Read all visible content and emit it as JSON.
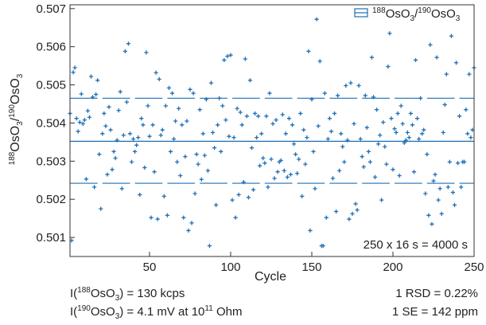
{
  "chart_data": {
    "type": "scatter",
    "xlabel": "Cycle",
    "ylabel_parts": {
      "sup1": "188",
      "base1": "OsO",
      "sub1": "3",
      "sep": "/",
      "sup2": "190",
      "base2": "OsO",
      "sub2": "3"
    },
    "legend_label_parts": {
      "sup1": "188",
      "base1": "OsO",
      "sub1": "3",
      "sep": "/",
      "sup2": "190",
      "base2": "OsO",
      "sub2": "3"
    },
    "legend_position": "top-right",
    "xlim": [
      1,
      250
    ],
    "ylim": [
      0.5005,
      0.5071
    ],
    "xticks": [
      50,
      100,
      150,
      200,
      250
    ],
    "yticks": [
      0.501,
      0.502,
      0.503,
      0.504,
      0.505,
      0.506,
      0.507
    ],
    "ytick_labels": [
      "0.501",
      "0.502",
      "0.503",
      "0.504",
      "0.505",
      "0.506",
      "0.507"
    ],
    "xtick_labels": [
      "50",
      "100",
      "150",
      "200",
      "250"
    ],
    "annotation": "250 x 16 s = 4000 s",
    "mean": 0.50352,
    "block_size": 20,
    "block_stats": [
      {
        "mean": 0.50352,
        "upper": 0.50465,
        "lower": 0.50242
      },
      {
        "mean": 0.50352,
        "upper": 0.50465,
        "lower": 0.50242
      },
      {
        "mean": 0.50352,
        "upper": 0.50465,
        "lower": 0.50242
      },
      {
        "mean": 0.50352,
        "upper": 0.50465,
        "lower": 0.50242
      },
      {
        "mean": 0.50352,
        "upper": 0.50465,
        "lower": 0.50242
      },
      {
        "mean": 0.50352,
        "upper": 0.50465,
        "lower": 0.50242
      },
      {
        "mean": 0.50352,
        "upper": 0.50465,
        "lower": 0.50242
      },
      {
        "mean": 0.50352,
        "upper": 0.50465,
        "lower": 0.50242
      },
      {
        "mean": 0.50352,
        "upper": 0.50465,
        "lower": 0.50242
      },
      {
        "mean": 0.50352,
        "upper": 0.50465,
        "lower": 0.50242
      },
      {
        "mean": 0.50352,
        "upper": 0.50465,
        "lower": 0.50242
      },
      {
        "mean": 0.50352,
        "upper": 0.50465,
        "lower": 0.50242
      },
      {
        "mean": 0.50352,
        "upper": 0.50465,
        "lower": 0.50242
      }
    ],
    "points": [
      [
        1,
        0.50425
      ],
      [
        2,
        0.50092
      ],
      [
        3,
        0.50533
      ],
      [
        4,
        0.50545
      ],
      [
        5,
        0.50412
      ],
      [
        6,
        0.50378
      ],
      [
        7,
        0.50402
      ],
      [
        8,
        0.50476
      ],
      [
        9,
        0.50398
      ],
      [
        10,
        0.50408
      ],
      [
        11,
        0.50253
      ],
      [
        12,
        0.50432
      ],
      [
        13,
        0.50415
      ],
      [
        14,
        0.50522
      ],
      [
        15,
        0.50468
      ],
      [
        16,
        0.50232
      ],
      [
        17,
        0.50475
      ],
      [
        18,
        0.50512
      ],
      [
        19,
        0.50318
      ],
      [
        20,
        0.50175
      ],
      [
        21,
        0.50372
      ],
      [
        22,
        0.50425
      ],
      [
        23,
        0.50392
      ],
      [
        24,
        0.50265
      ],
      [
        25,
        0.50442
      ],
      [
        26,
        0.50382
      ],
      [
        27,
        0.50278
      ],
      [
        28,
        0.50325
      ],
      [
        29,
        0.50308
      ],
      [
        30,
        0.50355
      ],
      [
        31,
        0.50433
      ],
      [
        32,
        0.50482
      ],
      [
        33,
        0.50228
      ],
      [
        34,
        0.50368
      ],
      [
        35,
        0.50588
      ],
      [
        36,
        0.50455
      ],
      [
        37,
        0.50608
      ],
      [
        38,
        0.50372
      ],
      [
        39,
        0.50298
      ],
      [
        40,
        0.50358
      ],
      [
        41,
        0.50325
      ],
      [
        42,
        0.50342
      ],
      [
        43,
        0.50362
      ],
      [
        44,
        0.50212
      ],
      [
        45,
        0.50412
      ],
      [
        46,
        0.50395
      ],
      [
        47,
        0.50283
      ],
      [
        48,
        0.50585
      ],
      [
        49,
        0.50445
      ],
      [
        50,
        0.50365
      ],
      [
        51,
        0.50152
      ],
      [
        52,
        0.50395
      ],
      [
        53,
        0.50272
      ],
      [
        54,
        0.50532
      ],
      [
        55,
        0.50148
      ],
      [
        56,
        0.50515
      ],
      [
        57,
        0.50368
      ],
      [
        58,
        0.50382
      ],
      [
        59,
        0.50208
      ],
      [
        60,
        0.50445
      ],
      [
        61,
        0.50158
      ],
      [
        62,
        0.50492
      ],
      [
        63,
        0.50325
      ],
      [
        64,
        0.50478
      ],
      [
        65,
        0.50358
      ],
      [
        66,
        0.50405
      ],
      [
        67,
        0.50298
      ],
      [
        68,
        0.50438
      ],
      [
        69,
        0.50262
      ],
      [
        70,
        0.50395
      ],
      [
        71,
        0.50152
      ],
      [
        72,
        0.50312
      ],
      [
        73,
        0.50405
      ],
      [
        74,
        0.50118
      ],
      [
        75,
        0.50488
      ],
      [
        76,
        0.50138
      ],
      [
        77,
        0.50478
      ],
      [
        78,
        0.50215
      ],
      [
        79,
        0.50318
      ],
      [
        80,
        0.50292
      ],
      [
        81,
        0.50435
      ],
      [
        82,
        0.50252
      ],
      [
        83,
        0.50372
      ],
      [
        84,
        0.50315
      ],
      [
        85,
        0.50462
      ],
      [
        86,
        0.50275
      ],
      [
        87,
        0.50078
      ],
      [
        88,
        0.50505
      ],
      [
        89,
        0.50375
      ],
      [
        90,
        0.50335
      ],
      [
        91,
        0.50185
      ],
      [
        92,
        0.50395
      ],
      [
        93,
        0.50465
      ],
      [
        94,
        0.50325
      ],
      [
        95,
        0.50445
      ],
      [
        96,
        0.50565
      ],
      [
        97,
        0.50408
      ],
      [
        98,
        0.50575
      ],
      [
        99,
        0.50365
      ],
      [
        100,
        0.50578
      ],
      [
        101,
        0.50198
      ],
      [
        102,
        0.50362
      ],
      [
        103,
        0.50152
      ],
      [
        104,
        0.50438
      ],
      [
        105,
        0.50212
      ],
      [
        106,
        0.50428
      ],
      [
        107,
        0.50395
      ],
      [
        108,
        0.50245
      ],
      [
        109,
        0.50568
      ],
      [
        110,
        0.50418
      ],
      [
        111,
        0.50205
      ],
      [
        112,
        0.50512
      ],
      [
        113,
        0.50335
      ],
      [
        114,
        0.50225
      ],
      [
        115,
        0.50425
      ],
      [
        116,
        0.50362
      ],
      [
        117,
        0.50418
      ],
      [
        118,
        0.50288
      ],
      [
        119,
        0.50372
      ],
      [
        120,
        0.50308
      ],
      [
        121,
        0.50295
      ],
      [
        122,
        0.50418
      ],
      [
        123,
        0.50232
      ],
      [
        124,
        0.50478
      ],
      [
        125,
        0.50305
      ],
      [
        126,
        0.50398
      ],
      [
        127,
        0.50255
      ],
      [
        128,
        0.50408
      ],
      [
        129,
        0.50272
      ],
      [
        130,
        0.50298
      ],
      [
        131,
        0.50302
      ],
      [
        132,
        0.50422
      ],
      [
        133,
        0.50275
      ],
      [
        134,
        0.50372
      ],
      [
        135,
        0.50258
      ],
      [
        136,
        0.50412
      ],
      [
        137,
        0.50265
      ],
      [
        138,
        0.50395
      ],
      [
        139,
        0.50345
      ],
      [
        140,
        0.50318
      ],
      [
        141,
        0.50268
      ],
      [
        142,
        0.50305
      ],
      [
        143,
        0.50425
      ],
      [
        144,
        0.50208
      ],
      [
        145,
        0.50382
      ],
      [
        146,
        0.50292
      ],
      [
        147,
        0.50362
      ],
      [
        148,
        0.50588
      ],
      [
        149,
        0.50118
      ],
      [
        150,
        0.50462
      ],
      [
        151,
        0.50325
      ],
      [
        152,
        0.50228
      ],
      [
        153,
        0.50672
      ],
      [
        154,
        0.50392
      ],
      [
        155,
        0.50562
      ],
      [
        156,
        0.50078
      ],
      [
        157,
        0.50078
      ],
      [
        158,
        0.50478
      ],
      [
        159,
        0.50152
      ],
      [
        160,
        0.50358
      ],
      [
        161,
        0.50412
      ],
      [
        162,
        0.50378
      ],
      [
        163,
        0.50255
      ],
      [
        164,
        0.50425
      ],
      [
        165,
        0.50168
      ],
      [
        166,
        0.50472
      ],
      [
        167,
        0.50275
      ],
      [
        168,
        0.50372
      ],
      [
        169,
        0.50338
      ],
      [
        170,
        0.50298
      ],
      [
        171,
        0.50498
      ],
      [
        172,
        0.50355
      ],
      [
        173,
        0.50148
      ],
      [
        174,
        0.50505
      ],
      [
        175,
        0.50162
      ],
      [
        176,
        0.50398
      ],
      [
        177,
        0.50188
      ],
      [
        178,
        0.50172
      ],
      [
        179,
        0.50498
      ],
      [
        180,
        0.50358
      ],
      [
        181,
        0.50312
      ],
      [
        182,
        0.50285
      ],
      [
        183,
        0.50472
      ],
      [
        184,
        0.50388
      ],
      [
        185,
        0.50325
      ],
      [
        186,
        0.50298
      ],
      [
        187,
        0.50572
      ],
      [
        188,
        0.50468
      ],
      [
        189,
        0.50258
      ],
      [
        190,
        0.50435
      ],
      [
        191,
        0.50345
      ],
      [
        192,
        0.50368
      ],
      [
        193,
        0.50198
      ],
      [
        194,
        0.50402
      ],
      [
        195,
        0.50338
      ],
      [
        196,
        0.50292
      ],
      [
        197,
        0.50548
      ],
      [
        198,
        0.50635
      ],
      [
        199,
        0.50412
      ],
      [
        200,
        0.50278
      ],
      [
        201,
        0.50385
      ],
      [
        202,
        0.50375
      ],
      [
        203,
        0.50425
      ],
      [
        204,
        0.50262
      ],
      [
        205,
        0.50445
      ],
      [
        206,
        0.50398
      ],
      [
        207,
        0.50348
      ],
      [
        208,
        0.50355
      ],
      [
        209,
        0.50375
      ],
      [
        210,
        0.50362
      ],
      [
        211,
        0.50425
      ],
      [
        212,
        0.50395
      ],
      [
        213,
        0.50272
      ],
      [
        214,
        0.50565
      ],
      [
        215,
        0.50412
      ],
      [
        216,
        0.50358
      ],
      [
        217,
        0.50465
      ],
      [
        218,
        0.50372
      ],
      [
        219,
        0.50382
      ],
      [
        220,
        0.50215
      ],
      [
        221,
        0.50318
      ],
      [
        222,
        0.50158
      ],
      [
        223,
        0.50605
      ],
      [
        224,
        0.50135
      ],
      [
        225,
        0.50248
      ],
      [
        226,
        0.50265
      ],
      [
        227,
        0.50572
      ],
      [
        228,
        0.50198
      ],
      [
        229,
        0.50228
      ],
      [
        230,
        0.50162
      ],
      [
        231,
        0.50375
      ],
      [
        232,
        0.50448
      ],
      [
        233,
        0.50528
      ],
      [
        234,
        0.50232
      ],
      [
        235,
        0.50298
      ],
      [
        236,
        0.50628
      ],
      [
        237,
        0.50218
      ],
      [
        238,
        0.50185
      ],
      [
        239,
        0.50558
      ],
      [
        240,
        0.50295
      ],
      [
        241,
        0.50418
      ],
      [
        242,
        0.50232
      ],
      [
        243,
        0.50298
      ],
      [
        244,
        0.50298
      ],
      [
        245,
        0.50435
      ],
      [
        246,
        0.50372
      ],
      [
        247,
        0.50528
      ],
      [
        248,
        0.50362
      ],
      [
        249,
        0.50382
      ],
      [
        250,
        0.50545
      ]
    ]
  },
  "footer": {
    "left1": {
      "pre": "I(",
      "sup": "188",
      "mid": "OsO",
      "sub": "3",
      "post": ") = 130 kcps"
    },
    "left2": {
      "pre": "I(",
      "sup": "190",
      "mid": "OsO",
      "sub": "3",
      "post": ") = 4.1 mV at 10",
      "sup2": "11",
      "post2": " Ohm"
    },
    "right1": "1 RSD = 0.22%",
    "right2": "1 SE = 142 ppm"
  },
  "colors": {
    "series": "#1f6fb4",
    "axis": "#333333"
  }
}
